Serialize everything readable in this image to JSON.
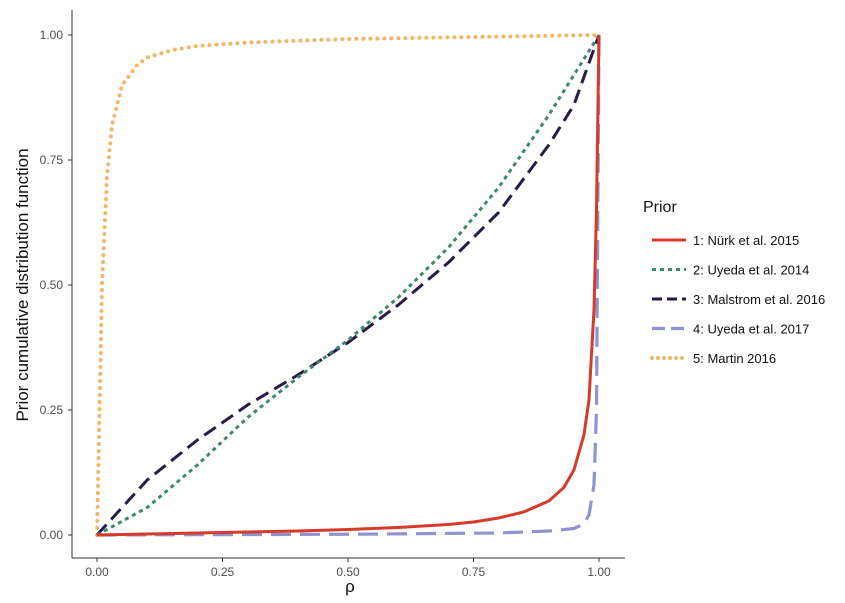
{
  "chart_data": {
    "type": "line",
    "xlabel": "ρ",
    "ylabel": "Prior cumulative distribution function",
    "xlim": [
      0,
      1
    ],
    "ylim": [
      0,
      1
    ],
    "xticks": [
      "0.00",
      "0.25",
      "0.50",
      "0.75",
      "1.00"
    ],
    "yticks": [
      "0.00",
      "0.25",
      "0.50",
      "0.75",
      "1.00"
    ],
    "grid": false,
    "legend": {
      "title": "Prior",
      "placement": "right"
    },
    "series": [
      {
        "name": "1: Nürk et al. 2015",
        "color": "#d73a2a",
        "style": "solid",
        "x": [
          0,
          0.1,
          0.2,
          0.3,
          0.4,
          0.5,
          0.6,
          0.7,
          0.75,
          0.8,
          0.85,
          0.9,
          0.93,
          0.95,
          0.97,
          0.98,
          0.99,
          0.995,
          1.0
        ],
        "y": [
          0,
          0.002,
          0.004,
          0.006,
          0.008,
          0.011,
          0.015,
          0.021,
          0.026,
          0.034,
          0.046,
          0.068,
          0.095,
          0.13,
          0.2,
          0.27,
          0.45,
          0.65,
          1.0
        ]
      },
      {
        "name": "2: Uyeda et al. 2014",
        "color": "#3a8a6e",
        "style": "dotted",
        "x": [
          0,
          0.1,
          0.2,
          0.3,
          0.4,
          0.5,
          0.6,
          0.7,
          0.8,
          0.9,
          1.0
        ],
        "y": [
          0,
          0.055,
          0.14,
          0.235,
          0.315,
          0.39,
          0.475,
          0.575,
          0.695,
          0.84,
          1.0
        ]
      },
      {
        "name": "3: Malstrom et al. 2016",
        "color": "#2a1a4a",
        "style": "dashed",
        "x": [
          0,
          0.1,
          0.2,
          0.3,
          0.4,
          0.5,
          0.6,
          0.7,
          0.8,
          0.9,
          0.95,
          1.0
        ],
        "y": [
          0,
          0.11,
          0.19,
          0.26,
          0.32,
          0.385,
          0.46,
          0.545,
          0.645,
          0.78,
          0.86,
          1.0
        ]
      },
      {
        "name": "4: Uyeda et al. 2017",
        "color": "#8f93cf",
        "style": "longdash",
        "x": [
          0,
          0.5,
          0.8,
          0.9,
          0.95,
          0.97,
          0.98,
          0.99,
          0.995,
          1.0
        ],
        "y": [
          0,
          0.0015,
          0.004,
          0.008,
          0.013,
          0.022,
          0.04,
          0.1,
          0.25,
          1.0
        ]
      },
      {
        "name": "5: Martin 2016",
        "color": "#f4b565",
        "style": "dotted",
        "x": [
          0,
          0.005,
          0.01,
          0.02,
          0.03,
          0.05,
          0.08,
          0.1,
          0.15,
          0.2,
          0.3,
          0.5,
          0.75,
          1.0
        ],
        "y": [
          0,
          0.25,
          0.5,
          0.72,
          0.82,
          0.9,
          0.94,
          0.955,
          0.97,
          0.978,
          0.985,
          0.992,
          0.996,
          1.0
        ]
      }
    ]
  }
}
